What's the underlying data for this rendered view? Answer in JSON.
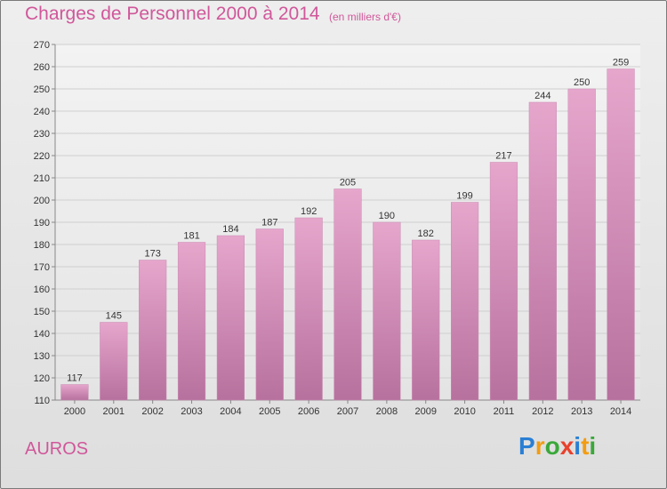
{
  "header": {
    "title": "Charges de Personnel 2000 à 2014",
    "subtitle": "(en milliers d'€)"
  },
  "footer": {
    "commune": "AUROS",
    "logo_letters": [
      "P",
      "r",
      "o",
      "x",
      "i",
      "t",
      "i"
    ],
    "logo_colors": [
      "#2a7fd4",
      "#f39c12",
      "#3aa83a",
      "#e8412c",
      "#2a7fd4",
      "#f39c12",
      "#3aa83a"
    ]
  },
  "colors": {
    "bar": "#d98ab8",
    "bar_dark": "#b6679a",
    "text_accent": "#d0579a"
  },
  "chart_data": {
    "type": "bar",
    "title": "Charges de Personnel 2000 à 2014",
    "subtitle": "(en milliers d'€)",
    "categories": [
      "2000",
      "2001",
      "2002",
      "2003",
      "2004",
      "2005",
      "2006",
      "2007",
      "2008",
      "2009",
      "2010",
      "2011",
      "2012",
      "2013",
      "2014"
    ],
    "values": [
      117,
      145,
      173,
      181,
      184,
      187,
      192,
      205,
      190,
      182,
      199,
      217,
      244,
      250,
      259
    ],
    "ylim": [
      110,
      270
    ],
    "yticks": [
      110,
      120,
      130,
      140,
      150,
      160,
      170,
      180,
      190,
      200,
      210,
      220,
      230,
      240,
      250,
      260,
      270
    ],
    "grid": true,
    "xlabel": "",
    "ylabel": ""
  }
}
